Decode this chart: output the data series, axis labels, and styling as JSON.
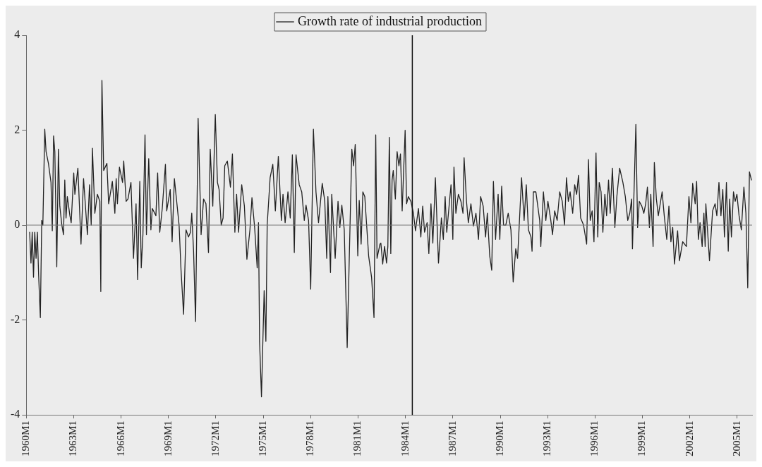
{
  "chart_data": {
    "type": "line",
    "legend": "top",
    "marker": "none",
    "grid": false,
    "xlim": [
      "1960-01-01",
      "2005-12-12"
    ],
    "ylim": [
      -4,
      4
    ],
    "yticks": [
      -4,
      -2,
      0,
      2,
      4
    ],
    "xticks": [
      {
        "value": "1960-01",
        "label": "1960M1"
      },
      {
        "value": "1963-01",
        "label": "1963M1"
      },
      {
        "value": "1966-01",
        "label": "1966M1"
      },
      {
        "value": "1969-01",
        "label": "1969M1"
      },
      {
        "value": "1972-01",
        "label": "1972M1"
      },
      {
        "value": "1975-01",
        "label": "1975M1"
      },
      {
        "value": "1978-01",
        "label": "1978M1"
      },
      {
        "value": "1981-01",
        "label": "1981M1"
      },
      {
        "value": "1984-01",
        "label": "1984M1"
      },
      {
        "value": "1987-01",
        "label": "1987M1"
      },
      {
        "value": "1990-01",
        "label": "1990M1"
      },
      {
        "value": "1993-01",
        "label": "1993M1"
      },
      {
        "value": "1996-01",
        "label": "1996M1"
      },
      {
        "value": "1999-01",
        "label": "1999M1"
      },
      {
        "value": "2002-01",
        "label": "2002M1"
      },
      {
        "value": "2005-01",
        "label": "2005M1"
      }
    ],
    "ref_lines": [
      {
        "axis": "x",
        "value": "1984-06-08",
        "color": "#111111"
      },
      {
        "axis": "y",
        "value": 0,
        "color": "#777777"
      }
    ],
    "x": [
      "1960-03-18",
      "1960-04-17",
      "1960-05-16",
      "1960-06-15",
      "1960-07-14",
      "1960-08-13",
      "1960-09-12",
      "1960-10-11",
      "1960-11-20",
      "1960-12-22",
      "1961-01-17",
      "1961-03-02",
      "1961-04-01",
      "1961-05-26",
      "1961-07-24",
      "1961-08-23",
      "1961-09-22",
      "1961-10-21",
      "1961-12-05",
      "1962-01-11",
      "1962-02-13",
      "1962-04-01",
      "1962-05-09",
      "1962-06-08",
      "1962-07-07",
      "1962-08-06",
      "1962-10-04",
      "1962-11-03",
      "1963-01-01",
      "1963-01-27",
      "1963-04-07",
      "1963-06-18",
      "1963-08-16",
      "1963-11-13",
      "1964-01-01",
      "1964-02-09",
      "1964-03-08",
      "1964-05-03",
      "1964-07-01",
      "1964-08-26",
      "1964-09-18",
      "1964-10-14",
      "1964-11-23",
      "1965-02-06",
      "1965-03-18",
      "1965-06-12",
      "1965-08-09",
      "1965-09-08",
      "1965-10-07",
      "1965-11-23",
      "1966-02-03",
      "1966-03-02",
      "1966-04-27",
      "1966-06-08",
      "1966-08-16",
      "1966-10-14",
      "1966-12-12",
      "1967-01-17",
      "1967-03-08",
      "1967-04-11",
      "1967-05-20",
      "1967-07-07",
      "1967-08-09",
      "1967-10-01",
      "1967-11-20",
      "1967-12-22",
      "1968-03-15",
      "1968-04-24",
      "1968-06-12",
      "1968-08-09",
      "1968-10-21",
      "1968-11-20",
      "1969-02-09",
      "1969-03-25",
      "1969-05-16",
      "1969-09-02",
      "1969-10-17",
      "1969-12-15",
      "1970-02-09",
      "1970-04-07",
      "1970-05-23",
      "1970-06-22",
      "1970-08-03",
      "1970-09-18",
      "1970-11-16",
      "1971-01-24",
      "1971-03-22",
      "1971-05-16",
      "1971-07-14",
      "1971-08-23",
      "1971-10-21",
      "1971-12-18",
      "1972-02-06",
      "1972-03-15",
      "1972-05-03",
      "1972-06-15",
      "1972-07-24",
      "1972-09-22",
      "1972-12-02",
      "1973-01-17",
      "1973-03-15",
      "1973-04-24",
      "1973-06-08",
      "1973-08-20",
      "1973-10-21",
      "1973-12-18",
      "1974-02-26",
      "1974-04-14",
      "1974-06-15",
      "1974-08-13",
      "1974-09-12",
      "1974-10-07",
      "1974-11-20",
      "1974-12-22",
      "1975-01-21",
      "1975-03-02",
      "1975-04-01",
      "1975-06-08",
      "1975-08-09",
      "1975-10-07",
      "1975-12-15",
      "1976-02-23",
      "1976-04-01",
      "1976-05-20",
      "1976-07-24",
      "1976-09-15",
      "1976-11-03",
      "1976-12-18",
      "1977-01-27",
      "1977-04-11",
      "1977-06-08",
      "1977-08-06",
      "1977-09-15",
      "1977-11-13",
      "1978-01-01",
      "1978-03-05",
      "1978-05-03",
      "1978-07-01",
      "1978-09-25",
      "1978-11-23",
      "1979-01-07",
      "1979-02-03",
      "1979-04-04",
      "1979-05-03",
      "1979-07-21",
      "1979-09-25",
      "1979-11-06",
      "1979-12-22",
      "1980-02-16",
      "1980-04-24",
      "1980-08-09",
      "1980-09-18",
      "1980-10-27",
      "1980-12-25",
      "1981-01-27",
      "1981-03-12",
      "1981-04-21",
      "1981-06-05",
      "1981-09-02",
      "1981-11-09",
      "1982-01-04",
      "1982-02-13",
      "1982-03-15",
      "1982-05-23",
      "1982-06-12",
      "1982-07-24",
      "1982-09-05",
      "1982-10-21",
      "1982-11-20",
      "1982-12-25",
      "1983-01-27",
      "1983-02-26",
      "1983-03-25",
      "1983-05-13",
      "1983-06-22",
      "1983-08-03",
      "1983-09-08",
      "1983-10-17",
      "1983-12-25",
      "1984-01-27",
      "1984-03-08",
      "1984-05-06",
      "1984-07-04",
      "1984-08-20",
      "1984-10-27",
      "1984-12-22",
      "1985-02-03",
      "1985-03-18",
      "1985-05-16",
      "1985-06-25",
      "1985-08-13",
      "1985-09-25",
      "1985-11-23",
      "1986-02-03",
      "1986-04-11",
      "1986-05-26",
      "1986-07-07",
      "1986-08-13",
      "1986-10-11",
      "1986-11-20",
      "1987-01-01",
      "1987-01-27",
      "1987-03-12",
      "1987-05-09",
      "1987-07-07",
      "1987-08-23",
      "1987-09-18",
      "1987-11-13",
      "1987-12-25",
      "1988-02-23",
      "1988-04-21",
      "1988-06-18",
      "1988-08-16",
      "1988-10-04",
      "1988-12-02",
      "1989-01-27",
      "1989-03-08",
      "1989-05-03",
      "1989-06-18",
      "1989-07-27",
      "1989-09-15",
      "1989-11-13",
      "1989-12-22",
      "1990-02-03",
      "1990-03-18",
      "1990-05-09",
      "1990-07-04",
      "1990-09-05",
      "1990-10-27",
      "1990-12-25",
      "1991-02-06",
      "1991-05-09",
      "1991-07-07",
      "1991-08-26",
      "1991-10-14",
      "1991-12-12",
      "1992-01-07",
      "1992-02-06",
      "1992-04-04",
      "1992-07-01",
      "1992-07-27",
      "1992-09-25",
      "1992-11-20",
      "1993-01-07",
      "1993-03-15",
      "1993-04-24",
      "1993-06-12",
      "1993-08-09",
      "1993-10-07",
      "1993-12-05",
      "1994-01-27",
      "1994-03-12",
      "1994-04-24",
      "1994-06-05",
      "1994-08-03",
      "1994-09-18",
      "1994-11-03",
      "1994-12-15",
      "1995-02-03",
      "1995-04-11",
      "1995-06-22",
      "1995-08-03",
      "1995-09-12",
      "1995-10-27",
      "1995-12-08",
      "1996-01-24",
      "1996-03-05",
      "1996-04-07",
      "1996-05-20",
      "1996-07-01",
      "1996-08-16",
      "1996-09-25",
      "1996-11-09",
      "1996-12-18",
      "1997-02-06",
      "1997-04-04",
      "1997-05-20",
      "1997-07-24",
      "1997-10-07",
      "1997-12-02",
      "1998-01-27",
      "1998-03-15",
      "1998-04-27",
      "1998-05-16",
      "1998-08-03",
      "1998-09-12",
      "1998-10-21",
      "1998-12-18",
      "1999-02-03",
      "1999-03-18",
      "1999-04-27",
      "1999-06-12",
      "1999-07-14",
      "1999-09-05",
      "1999-10-04",
      "1999-11-20",
      "2000-01-04",
      "2000-04-01",
      "2000-05-20",
      "2000-07-17",
      "2000-09-05",
      "2000-10-21",
      "2000-12-02",
      "2001-01-11",
      "2001-03-25",
      "2001-05-06",
      "2001-07-21",
      "2001-10-14",
      "2001-12-12",
      "2002-01-27",
      "2002-03-08",
      "2002-05-06",
      "2002-06-08",
      "2002-07-17",
      "2002-08-26",
      "2002-10-14",
      "2002-11-23",
      "2002-12-22",
      "2003-01-07",
      "2003-04-01",
      "2003-06-12",
      "2003-08-09",
      "2003-09-18",
      "2003-11-06",
      "2003-12-22",
      "2004-02-03",
      "2004-03-12",
      "2004-04-27",
      "2004-06-08",
      "2004-07-11",
      "2004-08-20",
      "2004-10-07",
      "2004-11-16",
      "2004-12-25",
      "2005-02-13",
      "2005-04-07",
      "2005-06-05",
      "2005-07-21",
      "2005-09-02",
      "2005-10-11",
      "2005-11-26"
    ],
    "series": [
      {
        "name": "Growth rate of industrial production",
        "color": "#222222",
        "values": [
          -0.15,
          -0.8,
          -0.15,
          -1.1,
          -0.15,
          -0.7,
          -0.15,
          -1.05,
          -1.95,
          0.1,
          0,
          2.02,
          1.55,
          1.3,
          0.9,
          -0.12,
          1.88,
          1.55,
          -0.88,
          1.6,
          0.4,
          0,
          -0.2,
          0.95,
          0.15,
          0.6,
          0.2,
          0.05,
          1.1,
          0.65,
          1.2,
          -0.4,
          0.98,
          -0.2,
          0.85,
          0,
          1.62,
          0.25,
          0.65,
          0.5,
          -1.4,
          3.05,
          1.15,
          1.3,
          0.45,
          0.92,
          0.25,
          0.98,
          0.45,
          1.22,
          0.9,
          1.35,
          0.5,
          0.55,
          0.9,
          -0.7,
          0.45,
          -1.15,
          0.92,
          -0.9,
          -0.2,
          1.9,
          -0.2,
          1.4,
          -0.1,
          0.35,
          0.2,
          1.1,
          -0.15,
          0.35,
          1.28,
          0.3,
          0.75,
          -0.35,
          0.98,
          0,
          -0.95,
          -1.88,
          -0.1,
          -0.25,
          -0.15,
          0.25,
          -0.55,
          -2.03,
          2.25,
          -0.2,
          0.55,
          0.45,
          -0.58,
          1.6,
          0.4,
          2.33,
          0.9,
          0.75,
          0,
          0.15,
          1.25,
          1.35,
          0.8,
          1.5,
          -0.15,
          0.65,
          -0.15,
          0.85,
          0.4,
          -0.72,
          -0.1,
          0.58,
          -0.05,
          -0.9,
          0.05,
          -2.45,
          -3.62,
          -2.45,
          -1.38,
          -2.45,
          0,
          1.0,
          1.28,
          0.3,
          1.45,
          0.1,
          0.65,
          0.05,
          0.7,
          0.15,
          1.48,
          -0.58,
          1.48,
          0.85,
          0.7,
          0.1,
          0.42,
          0.1,
          -1.35,
          2.02,
          0.7,
          0.05,
          0.88,
          0.5,
          -0.7,
          0.6,
          -1.0,
          0.65,
          -0.7,
          0.5,
          -0.05,
          0.42,
          -0.1,
          -2.58,
          1.6,
          1.25,
          1.7,
          -0.65,
          0.52,
          -0.4,
          0.7,
          0.6,
          -0.65,
          -1.1,
          -1.95,
          1.9,
          -0.7,
          -0.4,
          -0.38,
          -0.82,
          -0.45,
          -0.8,
          -0.45,
          1.85,
          -0.6,
          0.95,
          1.15,
          0.55,
          1.55,
          1.25,
          1.5,
          0.3,
          2.0,
          0.45,
          0.6,
          0.5,
          0.25,
          -0.12,
          0.35,
          -0.25,
          0.4,
          -0.15,
          0.05,
          -0.6,
          0.45,
          -0.38,
          1.0,
          -0.8,
          0.15,
          -0.3,
          0.6,
          -0.15,
          0.45,
          0.85,
          -0.3,
          1.22,
          0.25,
          0.65,
          0.5,
          0.25,
          1.42,
          0.5,
          0.05,
          0.45,
          -0.02,
          0.25,
          -0.3,
          0.6,
          0.4,
          -0.25,
          0.25,
          -0.65,
          -0.95,
          0.92,
          -0.3,
          0.65,
          -0.3,
          0.82,
          0,
          0,
          0.25,
          -0.1,
          -1.2,
          -0.5,
          -0.7,
          1.0,
          0.1,
          0.85,
          -0.1,
          -0.25,
          -0.55,
          0.7,
          0.7,
          0.1,
          -0.45,
          0.7,
          0.1,
          0.5,
          0.1,
          -0.2,
          0.3,
          0.1,
          0.7,
          0.5,
          0,
          1.0,
          0.5,
          0.7,
          0.25,
          0.85,
          0.65,
          1.05,
          0.15,
          0,
          -0.4,
          1.38,
          0.1,
          0.3,
          -0.35,
          1.52,
          -0.25,
          0.9,
          0.7,
          -0.15,
          0.65,
          0.2,
          0.95,
          0.25,
          1.2,
          -0.05,
          0.6,
          1.2,
          0.9,
          0.6,
          0.1,
          0.25,
          0.55,
          -0.5,
          2.12,
          -0.05,
          0.5,
          0.4,
          0.25,
          0.45,
          0.8,
          -0.05,
          0.65,
          -0.45,
          1.32,
          0.55,
          0.2,
          0.7,
          0.2,
          -0.3,
          0.4,
          -0.35,
          -0.05,
          -0.82,
          -0.12,
          -0.75,
          -0.35,
          -0.45,
          0.6,
          0.05,
          0.88,
          0.45,
          0.92,
          -0.3,
          0.05,
          -0.45,
          0.25,
          -0.45,
          0.45,
          -0.75,
          0.3,
          0.45,
          0.2,
          0.9,
          0.2,
          0.75,
          -0.25,
          0.9,
          -0.55,
          0.55,
          -0.25,
          0.7,
          0.5,
          0.65,
          0.2,
          -0.1,
          0.8,
          0.25,
          -1.32,
          1.12,
          0.95
        ]
      }
    ]
  }
}
